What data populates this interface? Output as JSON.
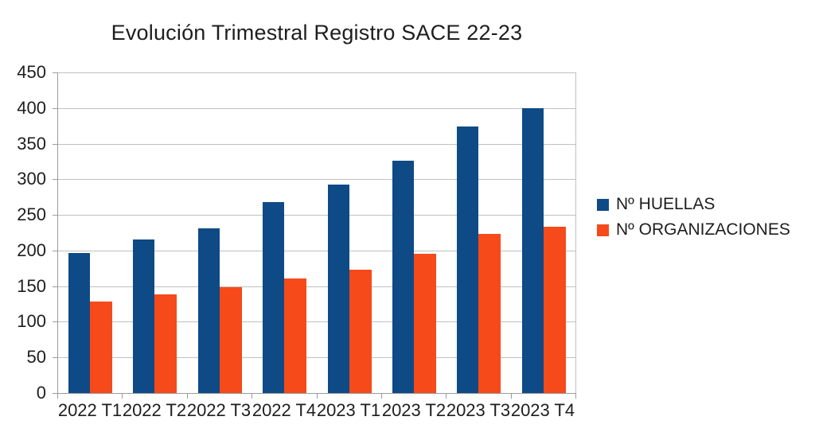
{
  "chart_data": {
    "type": "bar",
    "title": "Evolución Trimestral Registro SACE 22-23",
    "categories": [
      "2022 T1",
      "2022 T2",
      "2022 T3",
      "2022 T4",
      "2023 T1",
      "2023 T2",
      "2023 T3",
      "2023 T4"
    ],
    "series": [
      {
        "name": "Nº HUELLAS",
        "color": "#0e4a86",
        "values": [
          197,
          215,
          231,
          268,
          293,
          326,
          374,
          400
        ]
      },
      {
        "name": "Nº ORGANIZACIONES",
        "color": "#f64a1a",
        "values": [
          128,
          139,
          148,
          161,
          173,
          195,
          223,
          233
        ]
      }
    ],
    "xlabel": "",
    "ylabel": "",
    "ylim": [
      0,
      450
    ],
    "yticks": [
      0,
      50,
      100,
      150,
      200,
      250,
      300,
      350,
      400,
      450
    ],
    "grid": true,
    "legend_position": "right",
    "background_color": "#ffffff",
    "gridline_color": "#c0c0c0",
    "axis_color": "#9c9c9c",
    "text_color": "#1e1e1e"
  }
}
